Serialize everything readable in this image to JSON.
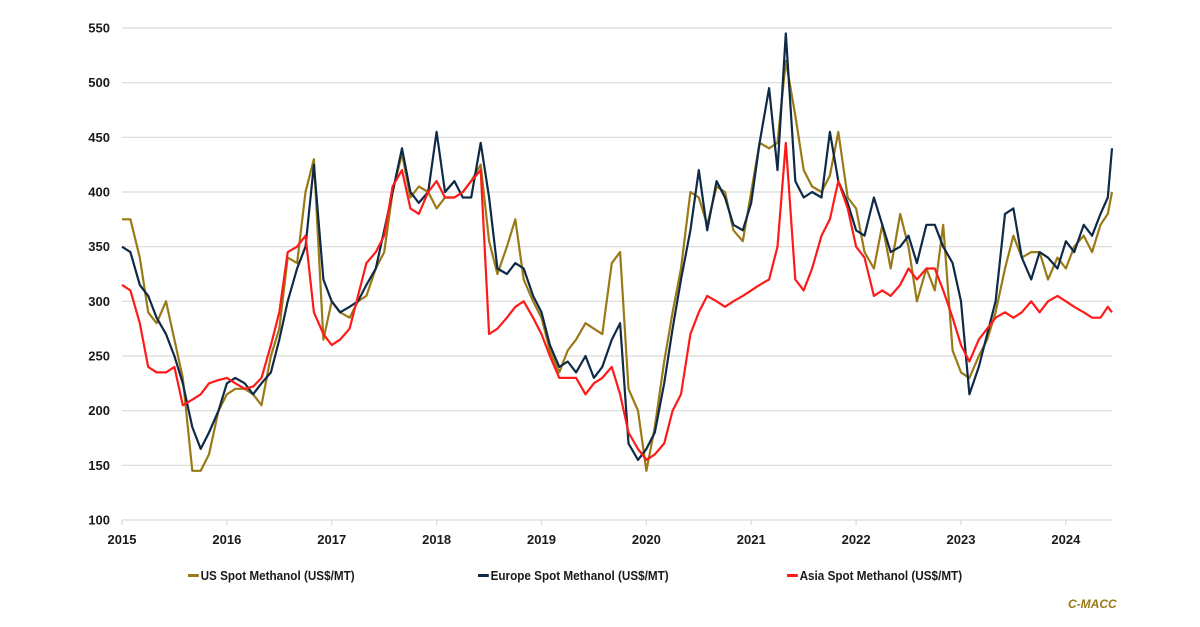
{
  "chart_data": {
    "type": "line",
    "title": "",
    "xlabel": "",
    "ylabel": "",
    "xlim": [
      2015,
      2024.44
    ],
    "ylim": [
      100,
      550
    ],
    "yticks": [
      100,
      150,
      200,
      250,
      300,
      350,
      400,
      450,
      500,
      550
    ],
    "xticks": [
      "2015",
      "2016",
      "2017",
      "2018",
      "2019",
      "2020",
      "2021",
      "2022",
      "2023",
      "2024"
    ],
    "grid": "horizontal",
    "legend_position": "bottom",
    "x": [
      2015.0,
      2015.08,
      2015.17,
      2015.25,
      2015.33,
      2015.42,
      2015.5,
      2015.58,
      2015.67,
      2015.75,
      2015.83,
      2015.92,
      2016.0,
      2016.08,
      2016.17,
      2016.25,
      2016.33,
      2016.42,
      2016.5,
      2016.58,
      2016.67,
      2016.75,
      2016.83,
      2016.92,
      2017.0,
      2017.08,
      2017.17,
      2017.25,
      2017.33,
      2017.42,
      2017.5,
      2017.58,
      2017.67,
      2017.75,
      2017.83,
      2017.92,
      2018.0,
      2018.08,
      2018.17,
      2018.25,
      2018.33,
      2018.42,
      2018.5,
      2018.58,
      2018.67,
      2018.75,
      2018.83,
      2018.92,
      2019.0,
      2019.08,
      2019.17,
      2019.25,
      2019.33,
      2019.42,
      2019.5,
      2019.58,
      2019.67,
      2019.75,
      2019.83,
      2019.92,
      2020.0,
      2020.08,
      2020.17,
      2020.25,
      2020.33,
      2020.42,
      2020.5,
      2020.58,
      2020.67,
      2020.75,
      2020.83,
      2020.92,
      2021.0,
      2021.08,
      2021.17,
      2021.25,
      2021.33,
      2021.42,
      2021.5,
      2021.58,
      2021.67,
      2021.75,
      2021.83,
      2021.92,
      2022.0,
      2022.08,
      2022.17,
      2022.25,
      2022.33,
      2022.42,
      2022.5,
      2022.58,
      2022.67,
      2022.75,
      2022.83,
      2022.92,
      2023.0,
      2023.08,
      2023.17,
      2023.25,
      2023.33,
      2023.42,
      2023.5,
      2023.58,
      2023.67,
      2023.75,
      2023.83,
      2023.92,
      2024.0,
      2024.08,
      2024.17,
      2024.25,
      2024.33,
      2024.4,
      2024.44
    ],
    "series": [
      {
        "name": "US Spot Methanol (US$/MT)",
        "color": "#9a7a16",
        "values": [
          375,
          375,
          340,
          290,
          280,
          300,
          265,
          230,
          145,
          145,
          160,
          200,
          215,
          220,
          220,
          215,
          205,
          250,
          275,
          340,
          335,
          400,
          430,
          265,
          300,
          290,
          285,
          300,
          305,
          330,
          345,
          400,
          435,
          395,
          405,
          400,
          385,
          395,
          395,
          400,
          410,
          425,
          355,
          325,
          350,
          375,
          320,
          300,
          285,
          255,
          235,
          255,
          265,
          280,
          275,
          270,
          335,
          345,
          220,
          200,
          145,
          185,
          245,
          290,
          330,
          400,
          395,
          370,
          405,
          400,
          365,
          355,
          400,
          445,
          440,
          445,
          520,
          470,
          420,
          405,
          400,
          415,
          455,
          395,
          385,
          345,
          330,
          370,
          330,
          380,
          350,
          300,
          330,
          310,
          370,
          255,
          235,
          230,
          250,
          265,
          290,
          330,
          360,
          340,
          345,
          345,
          320,
          340,
          330,
          350,
          360,
          345,
          370,
          380,
          400
        ]
      },
      {
        "name": "Europe Spot Methanol (US$/MT)",
        "color": "#0e2a47",
        "values": [
          350,
          345,
          315,
          305,
          285,
          270,
          250,
          225,
          185,
          165,
          180,
          200,
          225,
          230,
          225,
          215,
          225,
          235,
          265,
          300,
          330,
          350,
          425,
          320,
          300,
          290,
          295,
          300,
          315,
          330,
          365,
          400,
          440,
          400,
          390,
          400,
          455,
          400,
          410,
          395,
          395,
          445,
          395,
          330,
          325,
          335,
          330,
          305,
          290,
          260,
          240,
          245,
          235,
          250,
          230,
          240,
          265,
          280,
          170,
          155,
          165,
          180,
          225,
          275,
          320,
          365,
          420,
          365,
          410,
          395,
          370,
          365,
          390,
          445,
          495,
          420,
          545,
          410,
          395,
          400,
          395,
          455,
          410,
          390,
          365,
          360,
          395,
          370,
          345,
          350,
          360,
          335,
          370,
          370,
          350,
          335,
          300,
          215,
          240,
          270,
          300,
          380,
          385,
          340,
          320,
          345,
          340,
          330,
          355,
          345,
          370,
          360,
          380,
          395,
          440
        ]
      },
      {
        "name": "Asia Spot Methanol (US$/MT)",
        "color": "#ff1a1a",
        "values": [
          315,
          310,
          280,
          240,
          235,
          235,
          240,
          205,
          210,
          215,
          225,
          228,
          230,
          225,
          220,
          222,
          230,
          260,
          290,
          345,
          350,
          360,
          290,
          270,
          260,
          265,
          275,
          305,
          335,
          345,
          360,
          405,
          420,
          385,
          380,
          400,
          410,
          395,
          395,
          400,
          410,
          420,
          270,
          275,
          285,
          295,
          300,
          285,
          270,
          250,
          230,
          230,
          230,
          215,
          225,
          230,
          240,
          215,
          180,
          165,
          155,
          160,
          170,
          200,
          215,
          270,
          290,
          305,
          300,
          295,
          300,
          305,
          310,
          315,
          320,
          350,
          445,
          320,
          310,
          330,
          360,
          375,
          410,
          385,
          350,
          340,
          305,
          310,
          305,
          315,
          330,
          320,
          330,
          330,
          310,
          285,
          260,
          245,
          265,
          275,
          285,
          290,
          285,
          290,
          300,
          290,
          300,
          305,
          300,
          295,
          290,
          285,
          285,
          295,
          290
        ]
      }
    ]
  },
  "source_label": "C-MACC"
}
